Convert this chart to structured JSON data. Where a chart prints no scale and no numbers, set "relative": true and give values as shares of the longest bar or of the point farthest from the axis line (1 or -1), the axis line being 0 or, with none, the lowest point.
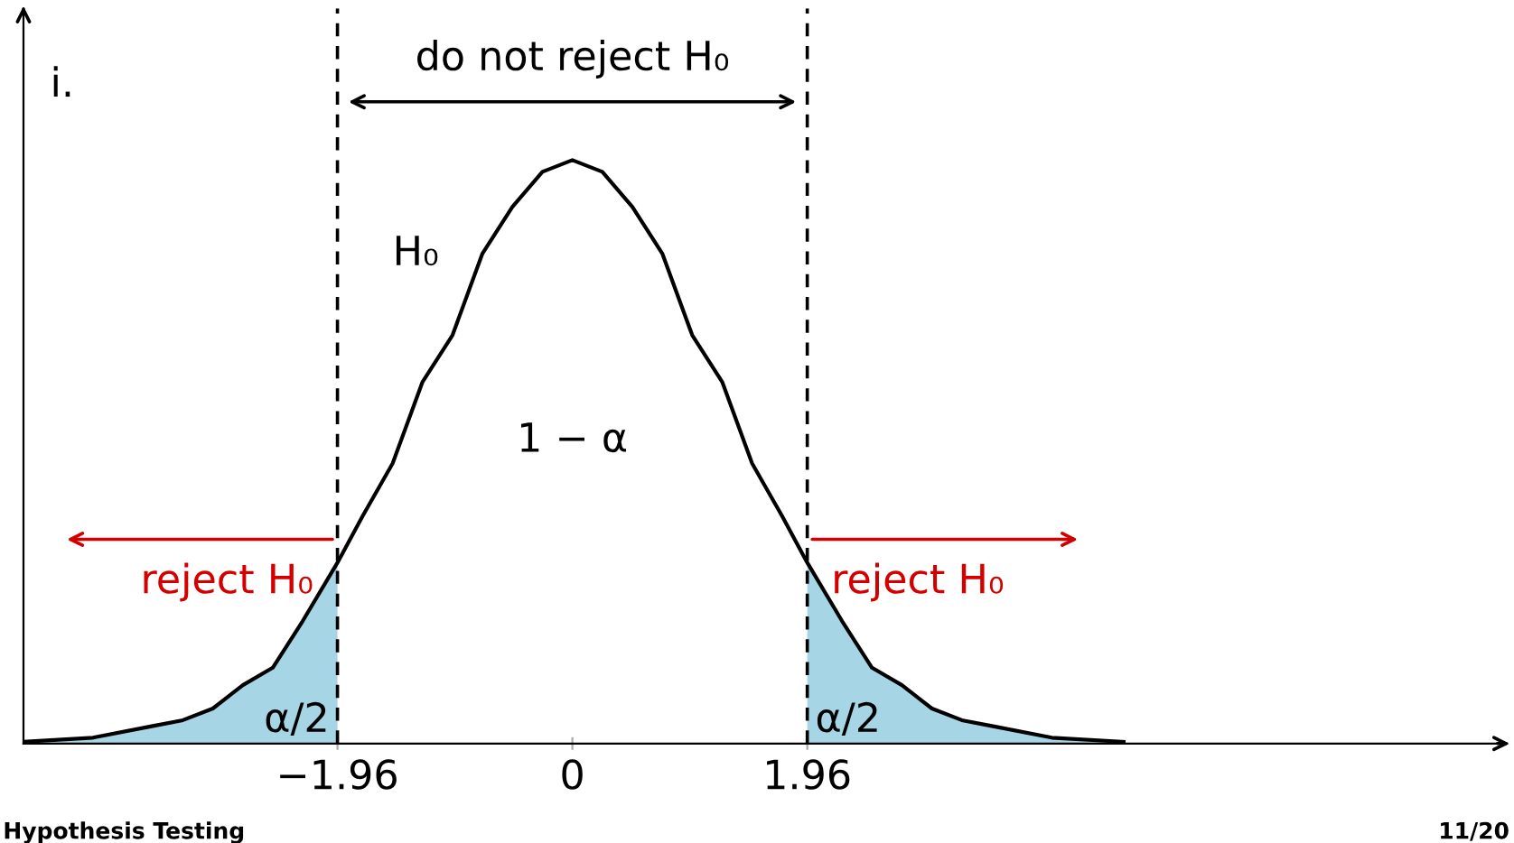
{
  "chart_data": {
    "type": "line",
    "relative": true,
    "xlim": [
      -4.58,
      7.8
    ],
    "xticks": [
      {
        "value": -1.96,
        "label": "−1.96"
      },
      0,
      1.96
    ],
    "tick_labels": "x",
    "grid": false,
    "marker": "none",
    "line_style": "solid",
    "series": [
      {
        "color": "#000000",
        "x": [
          -4.58,
          -4,
          -3.5,
          -3.25,
          -3,
          -2.75,
          -2.5,
          -2.25,
          -1.96,
          -1.75,
          -1.5,
          -1.25,
          -1,
          -0.75,
          -0.5,
          -0.25,
          0,
          0.25,
          0.5,
          0.75,
          1,
          1.25,
          1.5,
          1.75,
          1.96,
          2.25,
          2.5,
          2.75,
          3,
          3.25,
          3.5,
          4,
          4.6
        ],
        "values": [
          0.003,
          0.01,
          0.03,
          0.04,
          0.06,
          0.1,
          0.13,
          0.21,
          0.31,
          0.39,
          0.48,
          0.62,
          0.7,
          0.84,
          0.92,
          0.98,
          1,
          0.98,
          0.92,
          0.84,
          0.7,
          0.62,
          0.48,
          0.39,
          0.31,
          0.21,
          0.13,
          0.1,
          0.06,
          0.04,
          0.03,
          0.01,
          0.003
        ]
      },
      {
        "type": "area",
        "color": "#a6d5e6",
        "x": [
          -4.58,
          -4,
          -3.5,
          -3.25,
          -3,
          -2.75,
          -2.5,
          -2.25,
          -1.96
        ],
        "values": [
          0.003,
          0.01,
          0.03,
          0.04,
          0.06,
          0.1,
          0.13,
          0.21,
          0.31
        ]
      },
      {
        "type": "area",
        "color": "#a6d5e6",
        "x": [
          1.96,
          2.25,
          2.5,
          2.75,
          3,
          3.25,
          3.5,
          4,
          4.6
        ],
        "values": [
          0.31,
          0.21,
          0.13,
          0.1,
          0.06,
          0.04,
          0.03,
          0.01,
          0.003
        ]
      }
    ],
    "ref_lines": [
      {
        "axis": "x",
        "value": -1.96,
        "color": "#000000",
        "line_style": "dashed"
      },
      {
        "axis": "x",
        "value": 1.96,
        "color": "#000000",
        "line_style": "dashed"
      }
    ],
    "annotations": [
      "i.",
      "do not reject H₀",
      {
        "text": "reject H₀",
        "x": -1.96,
        "y": 0.35
      },
      {
        "text": "reject H₀",
        "x": 1.96,
        "y": 0.35
      },
      "H₀",
      "1 − α",
      "α/2",
      "α/2",
      "Hypothesis Testing",
      "11/20"
    ]
  }
}
